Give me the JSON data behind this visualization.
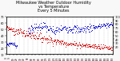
{
  "title": "Milwaukee Weather Outdoor Humidity\nvs Temperature\nEvery 5 Minutes",
  "title_fontsize": 3.5,
  "background_color": "#f8f8f8",
  "plot_bg_color": "#ffffff",
  "humidity_color": "#0000cc",
  "temp_color": "#cc0000",
  "grid_color": "#bbbbbb",
  "dot_size": 0.5,
  "humidity_ylim": [
    0,
    100
  ],
  "temp_ylim": [
    10,
    70
  ],
  "n_points": 288,
  "right_yticks": [
    20,
    30,
    40,
    50,
    60,
    70,
    80,
    90,
    100
  ],
  "left_yticks": [
    10,
    20,
    30,
    40,
    50,
    60,
    70
  ],
  "n_vgrid": 25
}
